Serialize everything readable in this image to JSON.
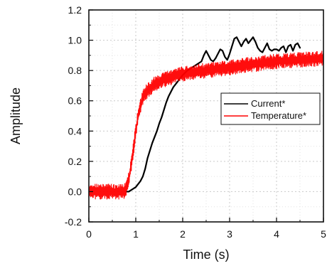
{
  "chart_data": {
    "type": "line",
    "title": "",
    "xlabel": "Time (s)",
    "ylabel": "Amplitude",
    "xlim": [
      0,
      5
    ],
    "ylim": [
      -0.2,
      1.2
    ],
    "x_ticks": [
      0,
      1,
      2,
      3,
      4,
      5
    ],
    "x_tick_labels": [
      "0",
      "1",
      "2",
      "3",
      "4",
      "5"
    ],
    "y_ticks": [
      -0.2,
      0.0,
      0.2,
      0.4,
      0.6,
      0.8,
      1.0,
      1.2
    ],
    "y_tick_labels": [
      "-0.2",
      "0.0",
      "0.2",
      "0.4",
      "0.6",
      "0.8",
      "1.0",
      "1.2"
    ],
    "grid": true,
    "legend_position": "right-middle",
    "series": [
      {
        "name": "Current*",
        "color": "#000000",
        "points": [
          [
            0.8,
            0.0
          ],
          [
            0.85,
            0.0
          ],
          [
            0.9,
            0.01
          ],
          [
            0.95,
            0.02
          ],
          [
            1.0,
            0.03
          ],
          [
            1.05,
            0.05
          ],
          [
            1.1,
            0.07
          ],
          [
            1.15,
            0.1
          ],
          [
            1.2,
            0.15
          ],
          [
            1.25,
            0.22
          ],
          [
            1.3,
            0.27
          ],
          [
            1.35,
            0.32
          ],
          [
            1.4,
            0.36
          ],
          [
            1.45,
            0.4
          ],
          [
            1.5,
            0.45
          ],
          [
            1.55,
            0.49
          ],
          [
            1.6,
            0.54
          ],
          [
            1.65,
            0.59
          ],
          [
            1.7,
            0.63
          ],
          [
            1.75,
            0.66
          ],
          [
            1.8,
            0.69
          ],
          [
            1.9,
            0.73
          ],
          [
            2.0,
            0.77
          ],
          [
            2.1,
            0.8
          ],
          [
            2.2,
            0.82
          ],
          [
            2.3,
            0.84
          ],
          [
            2.4,
            0.86
          ],
          [
            2.45,
            0.9
          ],
          [
            2.5,
            0.93
          ],
          [
            2.55,
            0.9
          ],
          [
            2.6,
            0.87
          ],
          [
            2.65,
            0.86
          ],
          [
            2.7,
            0.88
          ],
          [
            2.75,
            0.91
          ],
          [
            2.8,
            0.94
          ],
          [
            2.85,
            0.93
          ],
          [
            2.9,
            0.89
          ],
          [
            2.95,
            0.87
          ],
          [
            3.0,
            0.91
          ],
          [
            3.05,
            0.96
          ],
          [
            3.1,
            1.01
          ],
          [
            3.15,
            1.02
          ],
          [
            3.2,
            0.99
          ],
          [
            3.25,
            0.96
          ],
          [
            3.3,
            0.99
          ],
          [
            3.35,
            1.01
          ],
          [
            3.4,
            0.98
          ],
          [
            3.45,
            1.0
          ],
          [
            3.5,
            1.02
          ],
          [
            3.55,
            0.99
          ],
          [
            3.6,
            0.95
          ],
          [
            3.65,
            0.93
          ],
          [
            3.7,
            0.92
          ],
          [
            3.75,
            0.95
          ],
          [
            3.8,
            0.98
          ],
          [
            3.85,
            0.94
          ],
          [
            3.9,
            0.93
          ],
          [
            3.95,
            0.94
          ],
          [
            4.0,
            0.94
          ],
          [
            4.05,
            0.93
          ],
          [
            4.1,
            0.95
          ],
          [
            4.15,
            0.96
          ],
          [
            4.2,
            0.92
          ],
          [
            4.25,
            0.96
          ],
          [
            4.3,
            0.97
          ],
          [
            4.35,
            0.93
          ],
          [
            4.4,
            0.97
          ],
          [
            4.45,
            0.98
          ],
          [
            4.5,
            0.95
          ]
        ]
      },
      {
        "name": "Temperature*",
        "color": "#ff0000",
        "points": [
          [
            0.0,
            0.0
          ],
          [
            0.25,
            0.0
          ],
          [
            0.5,
            0.0
          ],
          [
            0.75,
            0.0
          ],
          [
            0.8,
            0.02
          ],
          [
            0.85,
            0.08
          ],
          [
            0.9,
            0.17
          ],
          [
            0.95,
            0.28
          ],
          [
            1.0,
            0.4
          ],
          [
            1.05,
            0.5
          ],
          [
            1.1,
            0.57
          ],
          [
            1.15,
            0.62
          ],
          [
            1.2,
            0.65
          ],
          [
            1.3,
            0.68
          ],
          [
            1.4,
            0.71
          ],
          [
            1.5,
            0.72
          ],
          [
            1.6,
            0.74
          ],
          [
            1.8,
            0.76
          ],
          [
            2.0,
            0.78
          ],
          [
            2.5,
            0.8
          ],
          [
            3.0,
            0.82
          ],
          [
            3.5,
            0.84
          ],
          [
            4.0,
            0.86
          ],
          [
            4.5,
            0.87
          ],
          [
            5.0,
            0.88
          ]
        ],
        "noise_band": 0.05
      }
    ]
  }
}
